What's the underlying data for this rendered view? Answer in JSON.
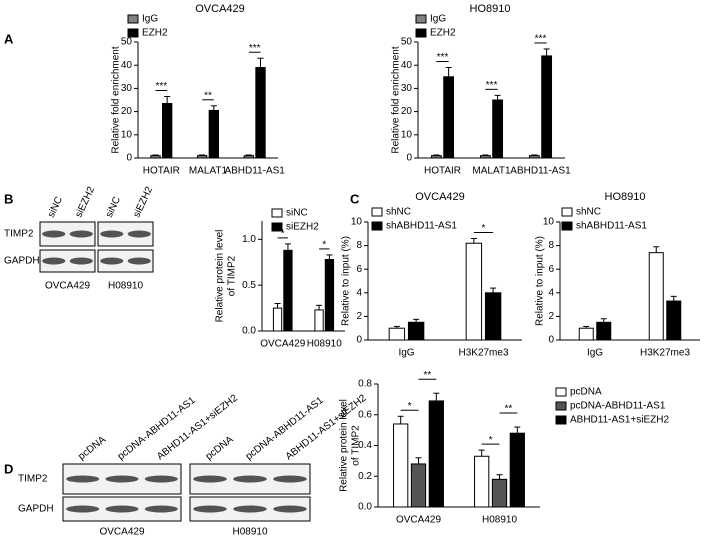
{
  "panel_labels": [
    "A",
    "B",
    "C",
    "D"
  ],
  "blots": [
    {
      "lanes": [
        "siNC",
        "siEZH2",
        "siNC",
        "siEZH2"
      ],
      "rows": [
        "TIMP2",
        "GAPDH"
      ],
      "cell_lines": [
        "OVCA429",
        "H08910"
      ]
    },
    {
      "lanes": [
        "pcDNA",
        "pcDNA-ABHD11-AS1",
        "ABHD11-AS1+siEZH2",
        "pcDNA",
        "pcDNA-ABHD11-AS1",
        "ABHD11-AS1+siEZH2"
      ],
      "rows": [
        "TIMP2",
        "GAPDH"
      ],
      "cell_lines": [
        "OVCA429",
        "H08910"
      ]
    }
  ],
  "chart_data": [
    {
      "type": "bar",
      "title": "OVCA429",
      "ylabel": [
        "Relative fold enrichment"
      ],
      "categories": [
        "HOTAIR",
        "MALAT1",
        "ABHD11-AS1"
      ],
      "series": [
        {
          "name": "IgG",
          "color": "#808080",
          "values": [
            1,
            1,
            1
          ],
          "errors": [
            0.3,
            0.3,
            0.3
          ]
        },
        {
          "name": "EZH2",
          "color": "#000000",
          "values": [
            23.5,
            20.5,
            39
          ],
          "errors": [
            3,
            2,
            4
          ]
        }
      ],
      "significance": [
        "***",
        "**",
        "***"
      ],
      "ylim": [
        0,
        50
      ],
      "yticks": [
        0,
        10,
        20,
        30,
        40,
        50
      ]
    },
    {
      "type": "bar",
      "title": "HO8910",
      "ylabel": [
        "Relative fold enrichment"
      ],
      "categories": [
        "HOTAIR",
        "MALAT1",
        "ABHD11-AS1"
      ],
      "series": [
        {
          "name": "IgG",
          "color": "#808080",
          "values": [
            1,
            1,
            1
          ],
          "errors": [
            0.3,
            0.3,
            0.3
          ]
        },
        {
          "name": "EZH2",
          "color": "#000000",
          "values": [
            35,
            25,
            44
          ],
          "errors": [
            4,
            2,
            3
          ]
        }
      ],
      "significance": [
        "***",
        "***",
        "***"
      ],
      "ylim": [
        0,
        50
      ],
      "yticks": [
        0,
        10,
        20,
        30,
        40,
        50
      ]
    },
    {
      "type": "bar",
      "ylabel": [
        "Relative protein level",
        "of TIMP2"
      ],
      "categories": [
        "OVCA429",
        "H08910"
      ],
      "series": [
        {
          "name": "siNC",
          "color": "#ffffff",
          "values": [
            0.25,
            0.23
          ],
          "errors": [
            0.05,
            0.05
          ]
        },
        {
          "name": "siEZH2",
          "color": "#000000",
          "values": [
            0.88,
            0.78
          ],
          "errors": [
            0.07,
            0.05
          ]
        }
      ],
      "significance": [
        "*",
        "*"
      ],
      "ylim": [
        0,
        1.2
      ],
      "yticks": [
        {
          "value": 0,
          "label": "0.0"
        },
        {
          "value": 0.5,
          "label": "0.5"
        },
        {
          "value": 1,
          "label": "1.0"
        }
      ]
    },
    {
      "type": "bar",
      "title": "OVCA429",
      "ylabel": [
        "Relative to input (%)"
      ],
      "categories": [
        "IgG",
        "H3K27me3"
      ],
      "series": [
        {
          "name": "shNC",
          "color": "#ffffff",
          "values": [
            1,
            8.2
          ],
          "errors": [
            0.15,
            0.4
          ]
        },
        {
          "name": "shABHD11-AS1",
          "color": "#000000",
          "values": [
            1.5,
            4
          ],
          "errors": [
            0.25,
            0.4
          ]
        }
      ],
      "significance": [
        null,
        "*"
      ],
      "ylim": [
        0,
        10
      ],
      "yticks": [
        0,
        2,
        4,
        6,
        8,
        10
      ]
    },
    {
      "type": "bar",
      "title": "HO8910",
      "ylabel": [
        "Relative to input (%)"
      ],
      "categories": [
        "IgG",
        "H3K27me3"
      ],
      "series": [
        {
          "name": "shNC",
          "color": "#ffffff",
          "values": [
            1,
            7.4
          ],
          "errors": [
            0.15,
            0.5
          ]
        },
        {
          "name": "shABHD11-AS1",
          "color": "#000000",
          "values": [
            1.5,
            3.3
          ],
          "errors": [
            0.3,
            0.4
          ]
        }
      ],
      "ylim": [
        0,
        10
      ],
      "yticks": [
        0,
        2,
        4,
        6,
        8,
        10
      ]
    },
    {
      "type": "bar",
      "ylabel": [
        "Relative protein level",
        "of TIMP2"
      ],
      "categories": [
        "OVCA429",
        "H08910"
      ],
      "series": [
        {
          "name": "pcDNA",
          "color": "#ffffff",
          "values": [
            0.54,
            0.33
          ],
          "errors": [
            0.05,
            0.04
          ]
        },
        {
          "name": "pcDNA-ABHD11-AS1",
          "color": "#555555",
          "values": [
            0.28,
            0.18
          ],
          "errors": [
            0.04,
            0.03
          ]
        },
        {
          "name": "ABHD11-AS1+siEZH2",
          "color": "#000000",
          "values": [
            0.69,
            0.48
          ],
          "errors": [
            0.05,
            0.04
          ]
        }
      ],
      "significance": [
        [
          "*",
          "**"
        ],
        [
          "*",
          "**"
        ]
      ],
      "ylim": [
        0,
        0.8
      ],
      "yticks": [
        {
          "value": 0,
          "label": "0.0"
        },
        {
          "value": 0.2,
          "label": "0.2"
        },
        {
          "value": 0.4,
          "label": "0.4"
        },
        {
          "value": 0.6,
          "label": "0.6"
        },
        {
          "value": 0.8,
          "label": "0.8"
        }
      ]
    }
  ]
}
